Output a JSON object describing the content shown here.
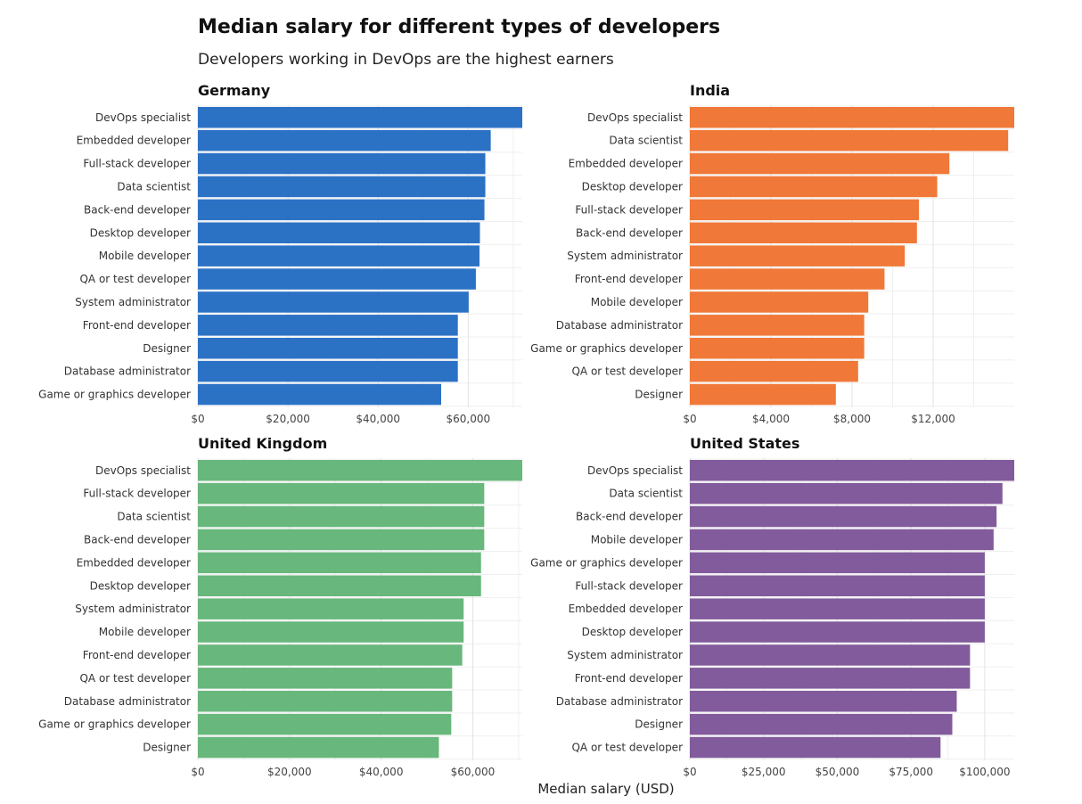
{
  "title": "Median salary for different types of developers",
  "subtitle": "Developers working in DevOps are the highest earners",
  "x_axis_title": "Median salary (USD)",
  "chart_data": [
    {
      "type": "bar",
      "orientation": "horizontal",
      "title": "Germany",
      "color": "#2b72c5",
      "categories": [
        "DevOps specialist",
        "Embedded developer",
        "Full-stack developer",
        "Data scientist",
        "Back-end developer",
        "Desktop developer",
        "Mobile developer",
        "QA or test developer",
        "System administrator",
        "Front-end developer",
        "Designer",
        "Database administrator",
        "Game or graphics developer"
      ],
      "values": [
        72000,
        65000,
        63800,
        63800,
        63600,
        62600,
        62500,
        61700,
        60100,
        57700,
        57700,
        57700,
        54000
      ],
      "xlim": [
        0,
        72000
      ],
      "ticks": [
        0,
        20000,
        40000,
        60000
      ],
      "tick_labels": [
        "$0",
        "$20,000",
        "$40,000",
        "$60,000"
      ],
      "xlabel": "Median salary (USD)"
    },
    {
      "type": "bar",
      "orientation": "horizontal",
      "title": "India",
      "color": "#f07838",
      "categories": [
        "DevOps specialist",
        "Data scientist",
        "Embedded developer",
        "Desktop developer",
        "Full-stack developer",
        "Back-end developer",
        "System administrator",
        "Front-end developer",
        "Mobile developer",
        "Database administrator",
        "Game or graphics developer",
        "QA or test developer",
        "Designer"
      ],
      "values": [
        16000,
        15700,
        12800,
        12200,
        11300,
        11200,
        10600,
        9600,
        8800,
        8600,
        8600,
        8300,
        7200
      ],
      "xlim": [
        0,
        16000
      ],
      "ticks": [
        0,
        4000,
        8000,
        12000
      ],
      "tick_labels": [
        "$0",
        "$4,000",
        "$8,000",
        "$12,000"
      ],
      "xlabel": "Median salary (USD)"
    },
    {
      "type": "bar",
      "orientation": "horizontal",
      "title": "United Kingdom",
      "color": "#68b77c",
      "categories": [
        "DevOps specialist",
        "Full-stack developer",
        "Data scientist",
        "Back-end developer",
        "Embedded developer",
        "Desktop developer",
        "System administrator",
        "Mobile developer",
        "Front-end developer",
        "QA or test developer",
        "Database administrator",
        "Game or graphics developer",
        "Designer"
      ],
      "values": [
        70800,
        62500,
        62500,
        62500,
        61800,
        61800,
        58000,
        58000,
        57700,
        55500,
        55500,
        55300,
        52600
      ],
      "xlim": [
        0,
        70800
      ],
      "ticks": [
        0,
        20000,
        40000,
        60000
      ],
      "tick_labels": [
        "$0",
        "$20,000",
        "$40,000",
        "$60,000"
      ],
      "xlabel": "Median salary (USD)"
    },
    {
      "type": "bar",
      "orientation": "horizontal",
      "title": "United States",
      "color": "#825b9c",
      "categories": [
        "DevOps specialist",
        "Data scientist",
        "Back-end developer",
        "Mobile developer",
        "Game or graphics developer",
        "Full-stack developer",
        "Embedded developer",
        "Desktop developer",
        "System administrator",
        "Front-end developer",
        "Database administrator",
        "Designer",
        "QA or test developer"
      ],
      "values": [
        110000,
        106000,
        104000,
        103000,
        100000,
        100000,
        100000,
        100000,
        95000,
        95000,
        90500,
        89000,
        85000
      ],
      "xlim": [
        0,
        110000
      ],
      "ticks": [
        0,
        25000,
        50000,
        75000,
        100000
      ],
      "tick_labels": [
        "$0",
        "$25,000",
        "$50,000",
        "$75,000",
        "$100,000"
      ],
      "xlabel": "Median salary (USD)"
    }
  ]
}
